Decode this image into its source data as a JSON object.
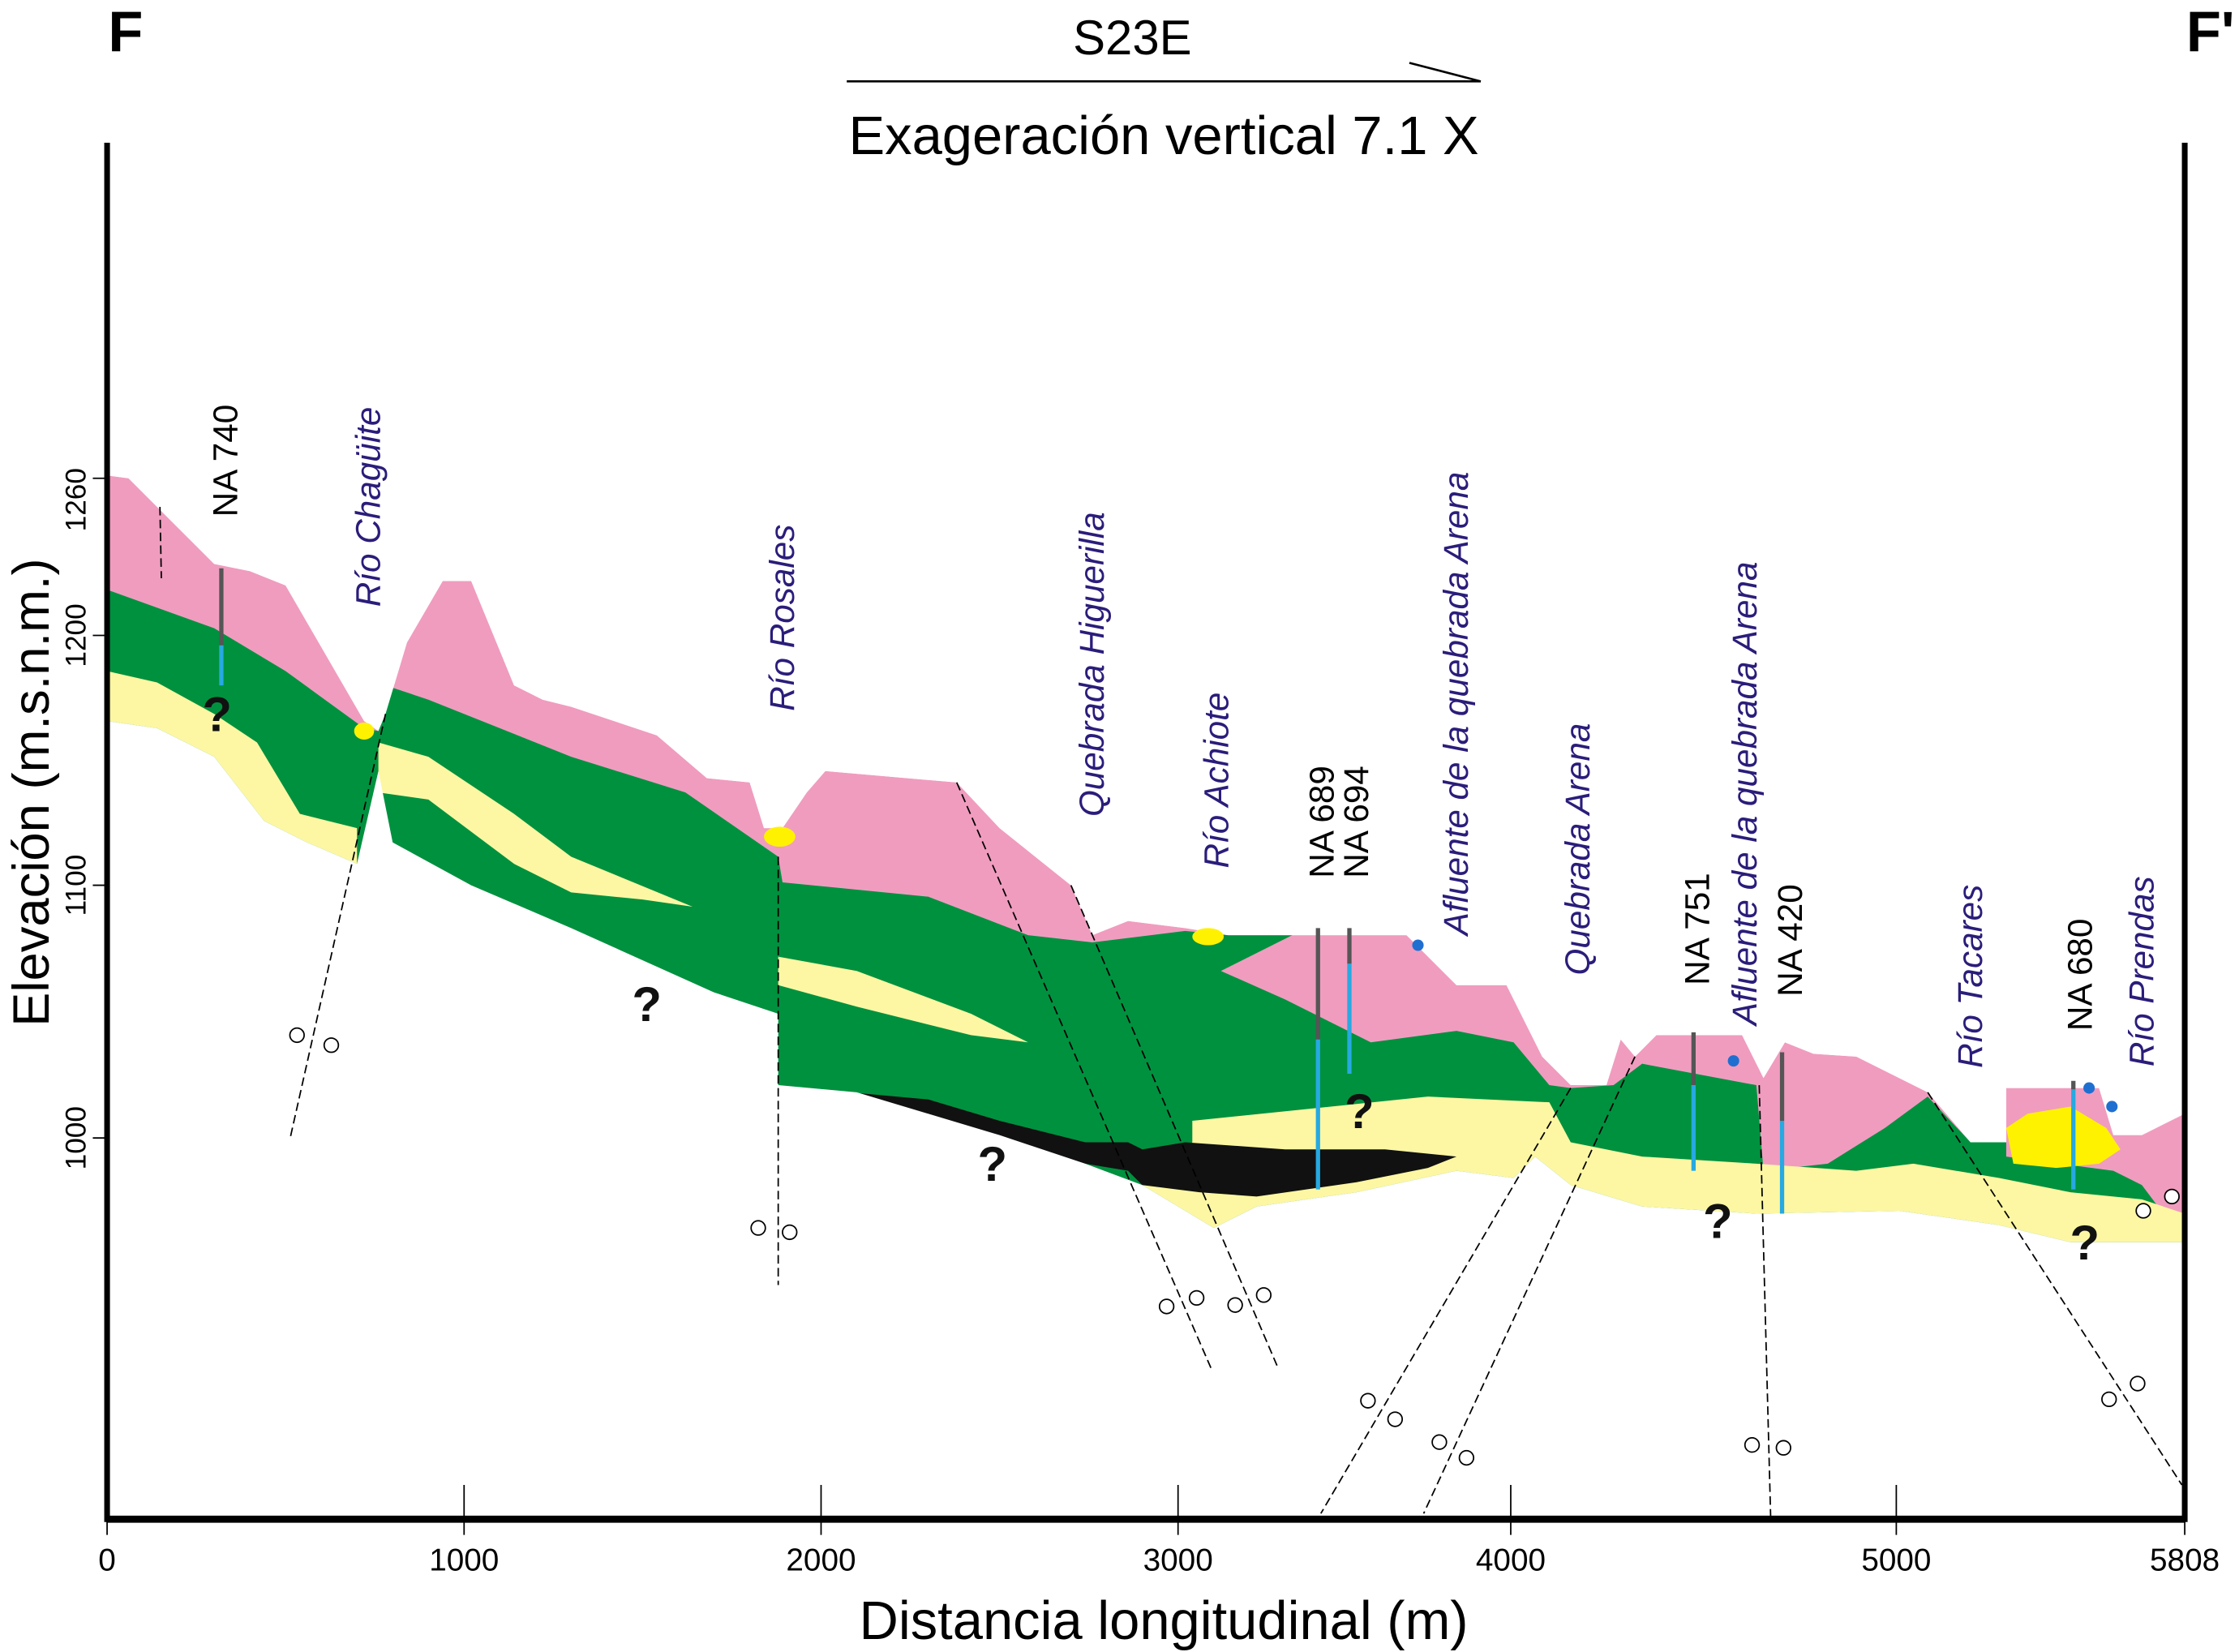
{
  "header": {
    "left_label": "F",
    "right_label": "F'",
    "direction": "S23E",
    "exaggeration": "Exageración vertical 7.1 X"
  },
  "axes": {
    "y_title": "Elevación (m.s.n.m.)",
    "x_title": "Distancia longitudinal (m)",
    "y_ticks": [
      "1260",
      "1200",
      "1100",
      "1000"
    ],
    "x_ticks": [
      "0",
      "1000",
      "2000",
      "3000",
      "4000",
      "5000",
      "5808"
    ]
  },
  "wells": [
    "NA 740",
    "NA 689",
    "NA 694",
    "NA 751",
    "NA 420",
    "NA 680"
  ],
  "rivers": [
    "Río Chagüite",
    "Río Rosales",
    "Quebrada Higuerilla",
    "Río Achiote",
    "Afluente de la quebrada Arena",
    "Quebrada Arena",
    "Afluente de la quebrada Arena",
    "Río Tacares",
    "Río Prendas"
  ],
  "unknown_mark": "?",
  "colors": {
    "pink": "#f09cbf",
    "green": "#00913f",
    "pale_yellow": "#fdf7a3",
    "yellow": "#fff200",
    "black": "#111111",
    "water_blue": "#27a9e1",
    "label_blue": "#2a1d7a"
  }
}
